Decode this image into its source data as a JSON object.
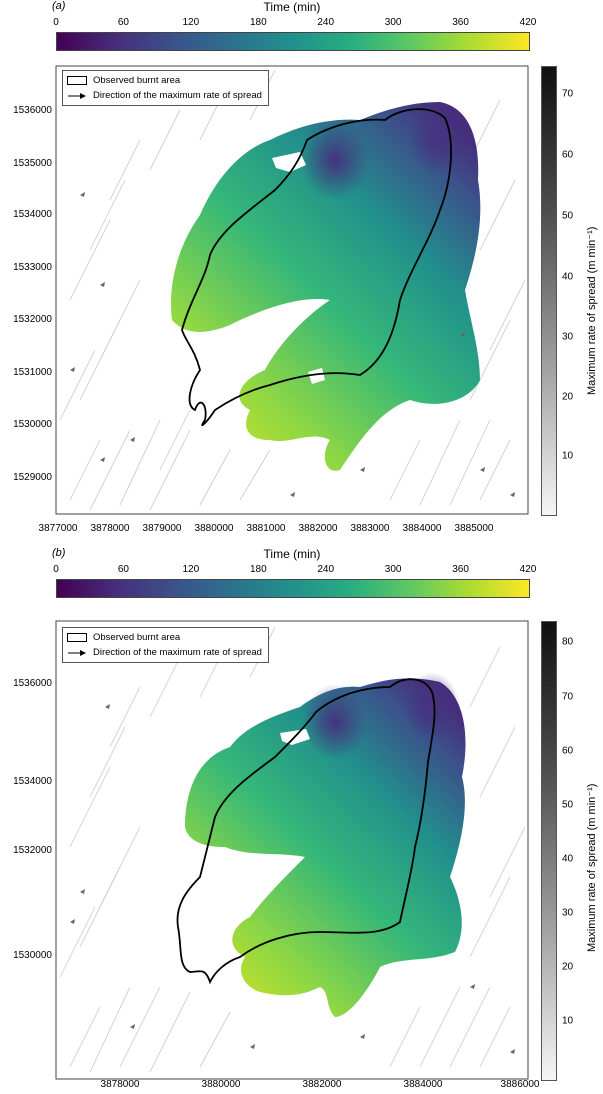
{
  "panels": [
    {
      "letter": "(a)",
      "colorbar_title": "Time (min)",
      "colorbar_ticks": [
        "0",
        "60",
        "120",
        "180",
        "240",
        "300",
        "360",
        "420"
      ],
      "legend": {
        "burnt_area": "Observed burnt area",
        "direction": "Direction of the maximum rate of spread"
      },
      "rate_colorbar_title": "Maximum rate of spread (m min⁻¹)",
      "rate_colorbar_ticks": [
        "10",
        "20",
        "30",
        "40",
        "50",
        "60",
        "70"
      ],
      "y_ticks": [
        "1536000",
        "1535000",
        "1534000",
        "1533000",
        "1532000",
        "1531000",
        "1530000",
        "1529000"
      ],
      "x_ticks": [
        "3877000",
        "3878000",
        "3879000",
        "3880000",
        "3881000",
        "3882000",
        "3883000",
        "3884000",
        "3885000"
      ]
    },
    {
      "letter": "(b)",
      "colorbar_title": "Time (min)",
      "colorbar_ticks": [
        "0",
        "60",
        "120",
        "180",
        "240",
        "300",
        "360",
        "420"
      ],
      "legend": {
        "burnt_area": "Observed burnt area",
        "direction": "Direction of the maximum rate of spread"
      },
      "rate_colorbar_title": "Maximum rate of spread (m min⁻¹)",
      "rate_colorbar_ticks": [
        "10",
        "20",
        "30",
        "40",
        "50",
        "60",
        "70",
        "80"
      ],
      "y_ticks": [
        "1536000",
        "1534000",
        "1532000",
        "1530000"
      ],
      "x_ticks": [
        "3878000",
        "3880000",
        "3882000",
        "3884000",
        "3886000"
      ]
    }
  ],
  "chart_data": [
    {
      "type": "heatmap",
      "title": "(a)",
      "colorbar": {
        "label": "Time (min)",
        "range": [
          0,
          420
        ],
        "colormap": "viridis"
      },
      "rate_colorbar": {
        "label": "Maximum rate of spread (m min⁻¹)",
        "range": [
          0,
          75
        ],
        "colormap": "greys"
      },
      "xlim": [
        3876800,
        3885900
      ],
      "ylim": [
        1528400,
        1537000
      ],
      "legend": [
        "Observed burnt area",
        "Direction of the maximum rate of spread"
      ]
    },
    {
      "type": "heatmap",
      "title": "(b)",
      "colorbar": {
        "label": "Time (min)",
        "range": [
          0,
          420
        ],
        "colormap": "viridis"
      },
      "rate_colorbar": {
        "label": "Maximum rate of spread (m min⁻¹)",
        "range": [
          0,
          85
        ],
        "colormap": "greys"
      },
      "xlim": [
        3876800,
        3886100
      ],
      "ylim": [
        1528000,
        1537200
      ],
      "legend": [
        "Observed burnt area",
        "Direction of the maximum rate of spread"
      ]
    }
  ]
}
